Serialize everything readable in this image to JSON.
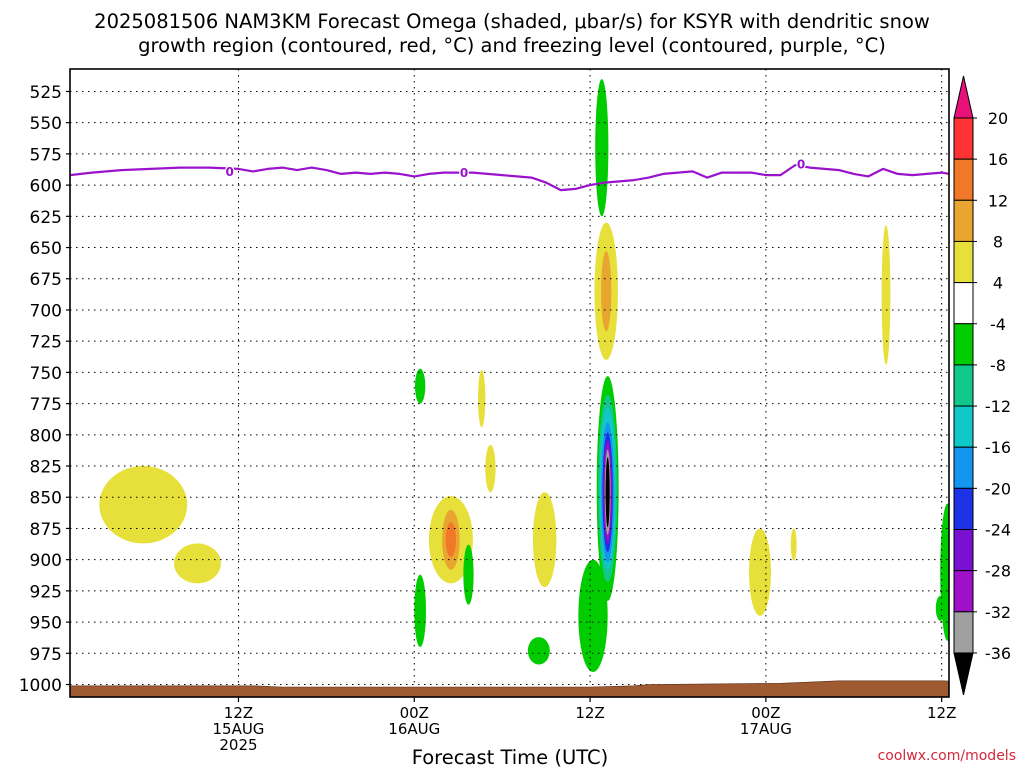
{
  "chart_data": {
    "type": "heatmap",
    "title_lines": [
      "2025081506 NAM3KM Forecast Omega (shaded, μbar/s) for KSYR with dendritic snow",
      "growth region (contoured, red, °C) and freezing level (contoured, purple, °C)"
    ],
    "xlabel": "Forecast Time (UTC)",
    "credit": "coolwx.com/models",
    "x_hours_range": [
      -5.5,
      54.5
    ],
    "y_range_hPa": [
      1010,
      507
    ],
    "y_ticks": [
      525,
      550,
      575,
      600,
      625,
      650,
      675,
      700,
      725,
      750,
      775,
      800,
      825,
      850,
      875,
      900,
      925,
      950,
      975,
      1000
    ],
    "x_ticks": [
      {
        "hours": 6,
        "lines": [
          "12Z",
          "15AUG",
          "2025"
        ]
      },
      {
        "hours": 18,
        "lines": [
          "00Z",
          "16AUG"
        ]
      },
      {
        "hours": 30,
        "lines": [
          "12Z"
        ]
      },
      {
        "hours": 42,
        "lines": [
          "00Z",
          "17AUG"
        ]
      },
      {
        "hours": 54,
        "lines": [
          "12Z"
        ]
      }
    ],
    "colorbar": {
      "labels": [
        "20",
        "16",
        "12",
        "8",
        "4",
        "-4",
        "-8",
        "-12",
        "-16",
        "-20",
        "-24",
        "-28",
        "-32",
        "-36"
      ],
      "colors": [
        "#ff3333",
        "#f07828",
        "#e8a630",
        "#e8e03a",
        "#ffffff",
        "#00cc00",
        "#10c88c",
        "#10c8c8",
        "#1496f0",
        "#1e32e6",
        "#7a10d2",
        "#a010c8",
        "#a0a0a0"
      ],
      "top_triangle_color": "#e6127a",
      "bottom_triangle_color": "#000000"
    },
    "freezing_level": {
      "color": "#9a12cc",
      "label": "0",
      "label_points": [
        [
          5.4,
          589
        ],
        [
          21.4,
          590
        ],
        [
          44.4,
          583
        ]
      ],
      "points": [
        [
          -5.5,
          592
        ],
        [
          -4,
          590
        ],
        [
          -2,
          588
        ],
        [
          0,
          587
        ],
        [
          2,
          586
        ],
        [
          4,
          586
        ],
        [
          6,
          587
        ],
        [
          7,
          589
        ],
        [
          8,
          587
        ],
        [
          9,
          586
        ],
        [
          10,
          588
        ],
        [
          11,
          586
        ],
        [
          12,
          588
        ],
        [
          13,
          591
        ],
        [
          14,
          590
        ],
        [
          15,
          591
        ],
        [
          16,
          590
        ],
        [
          17,
          591
        ],
        [
          18,
          593
        ],
        [
          19,
          591
        ],
        [
          20,
          590
        ],
        [
          21,
          590
        ],
        [
          22,
          590
        ],
        [
          23,
          591
        ],
        [
          24,
          592
        ],
        [
          25,
          593
        ],
        [
          26,
          594
        ],
        [
          27,
          598
        ],
        [
          28,
          604
        ],
        [
          29,
          603
        ],
        [
          30,
          600
        ],
        [
          31,
          598
        ],
        [
          32,
          597
        ],
        [
          33,
          596
        ],
        [
          34,
          594
        ],
        [
          35,
          591
        ],
        [
          36,
          590
        ],
        [
          37,
          589
        ],
        [
          38,
          594
        ],
        [
          39,
          590
        ],
        [
          40,
          590
        ],
        [
          41,
          590
        ],
        [
          42,
          592
        ],
        [
          43,
          592
        ],
        [
          44,
          584
        ],
        [
          45,
          586
        ],
        [
          46,
          587
        ],
        [
          47,
          588
        ],
        [
          48,
          591
        ],
        [
          49,
          593
        ],
        [
          50,
          587
        ],
        [
          51,
          591
        ],
        [
          52,
          592
        ],
        [
          53,
          591
        ],
        [
          54,
          590
        ],
        [
          55,
          592
        ],
        [
          56,
          594
        ],
        [
          56.5,
          595
        ],
        [
          57,
          603
        ],
        [
          58,
          605
        ],
        [
          59,
          604
        ],
        [
          60,
          605
        ],
        [
          61,
          603
        ],
        [
          62,
          602
        ],
        [
          63,
          600
        ],
        [
          64,
          597
        ],
        [
          65,
          596
        ]
      ],
      "points_note_unused": ""
    },
    "terrain": {
      "color": "#a05a32",
      "points": [
        [
          -5.5,
          1001
        ],
        [
          7,
          1001
        ],
        [
          9,
          1002
        ],
        [
          30,
          1002
        ],
        [
          33,
          1001
        ],
        [
          34,
          1000
        ],
        [
          43,
          999
        ],
        [
          47,
          997
        ],
        [
          54,
          997
        ],
        [
          56,
          998
        ],
        [
          57,
          996
        ],
        [
          65,
          996
        ]
      ]
    },
    "omega_shapes": [
      {
        "color": "#e8e03a",
        "cx": -0.5,
        "cy": 856,
        "rx": 3.0,
        "ry": 31
      },
      {
        "color": "#e8e03a",
        "cx": 3.2,
        "cy": 903,
        "rx": 1.6,
        "ry": 16
      },
      {
        "color": "#e8e03a",
        "cx": 20.5,
        "cy": 884,
        "rx": 1.5,
        "ry": 35
      },
      {
        "color": "#e8a630",
        "cx": 20.5,
        "cy": 884,
        "rx": 0.6,
        "ry": 24
      },
      {
        "color": "#f07828",
        "cx": 20.5,
        "cy": 884,
        "rx": 0.35,
        "ry": 14
      },
      {
        "color": "#00cc00",
        "cx": 18.4,
        "cy": 761,
        "rx": 0.35,
        "ry": 14
      },
      {
        "color": "#00cc00",
        "cx": 18.4,
        "cy": 941,
        "rx": 0.4,
        "ry": 29
      },
      {
        "color": "#00cc00",
        "cx": 21.7,
        "cy": 912,
        "rx": 0.35,
        "ry": 24
      },
      {
        "color": "#e8e03a",
        "cx": 22.6,
        "cy": 771,
        "rx": 0.25,
        "ry": 23
      },
      {
        "color": "#e8e03a",
        "cx": 23.2,
        "cy": 827,
        "rx": 0.35,
        "ry": 19
      },
      {
        "color": "#e8e03a",
        "cx": 26.9,
        "cy": 884,
        "rx": 0.8,
        "ry": 38
      },
      {
        "color": "#00cc00",
        "cx": 26.5,
        "cy": 973,
        "rx": 0.75,
        "ry": 11
      },
      {
        "color": "#00cc00",
        "cx": 30.2,
        "cy": 945,
        "rx": 1.0,
        "ry": 45
      },
      {
        "color": "#00cc00",
        "cx": 30.8,
        "cy": 570,
        "rx": 0.45,
        "ry": 55
      },
      {
        "color": "#e8e03a",
        "cx": 31.1,
        "cy": 685,
        "rx": 0.8,
        "ry": 55
      },
      {
        "color": "#e8a630",
        "cx": 31.1,
        "cy": 685,
        "rx": 0.35,
        "ry": 32
      },
      {
        "color": "#00cc00",
        "cx": 31.2,
        "cy": 843,
        "rx": 0.75,
        "ry": 90
      },
      {
        "color": "#10c88c",
        "cx": 31.2,
        "cy": 843,
        "rx": 0.65,
        "ry": 75
      },
      {
        "color": "#10c8c8",
        "cx": 31.2,
        "cy": 843,
        "rx": 0.55,
        "ry": 65
      },
      {
        "color": "#1496f0",
        "cx": 31.2,
        "cy": 846,
        "rx": 0.45,
        "ry": 56
      },
      {
        "color": "#1e32e6",
        "cx": 31.2,
        "cy": 846,
        "rx": 0.35,
        "ry": 48
      },
      {
        "color": "#7a10d2",
        "cx": 31.2,
        "cy": 846,
        "rx": 0.3,
        "ry": 42
      },
      {
        "color": "#a010c8",
        "cx": 31.2,
        "cy": 846,
        "rx": 0.25,
        "ry": 38
      },
      {
        "color": "#a0a0a0",
        "cx": 31.2,
        "cy": 846,
        "rx": 0.2,
        "ry": 34
      },
      {
        "color": "#000000",
        "cx": 31.2,
        "cy": 846,
        "rx": 0.14,
        "ry": 28
      },
      {
        "color": "#e8e03a",
        "cx": 41.6,
        "cy": 910,
        "rx": 0.75,
        "ry": 35
      },
      {
        "color": "#e8e03a",
        "cx": 43.9,
        "cy": 888,
        "rx": 0.2,
        "ry": 13
      },
      {
        "color": "#e8e03a",
        "cx": 50.2,
        "cy": 688,
        "rx": 0.3,
        "ry": 56
      },
      {
        "color": "#00cc00",
        "cx": 53.9,
        "cy": 939,
        "rx": 0.3,
        "ry": 10
      },
      {
        "color": "#00cc00",
        "cx": 54.4,
        "cy": 910,
        "rx": 0.5,
        "ry": 55
      }
    ]
  }
}
